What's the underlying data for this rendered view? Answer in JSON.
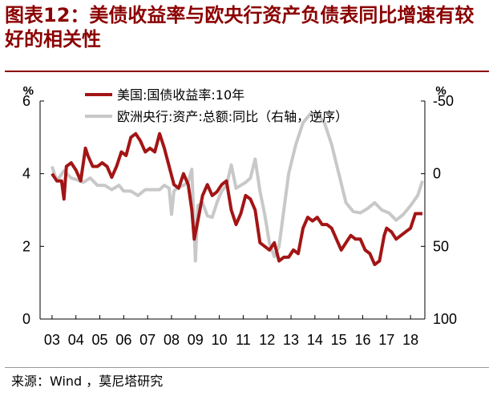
{
  "title": "图表12：美债收益率与欧央行资产负债表同比增速有较好的相关性",
  "source": "来源：Wind ，莫尼塔研究",
  "colors": {
    "series1": "#a31515",
    "series2": "#c8c8c8",
    "title": "#8b0000"
  },
  "chart_data": {
    "type": "line",
    "title": "图表12：美债收益率与欧央行资产负债表同比增速有较好的相关性",
    "x_ticks": [
      "03",
      "04",
      "05",
      "06",
      "07",
      "08",
      "09",
      "10",
      "11",
      "12",
      "13",
      "14",
      "15",
      "16",
      "17",
      "18"
    ],
    "x_range": [
      2002.5,
      2018.6
    ],
    "y_left": {
      "unit": "%",
      "range": [
        0,
        6
      ],
      "ticks": [
        0,
        2,
        4,
        6
      ]
    },
    "y_right": {
      "unit": "%",
      "range": [
        -50,
        100
      ],
      "inverted": true,
      "ticks": [
        -50,
        0,
        50,
        100
      ]
    },
    "legend_position": "top-left",
    "grid": false,
    "series": [
      {
        "name": "美国:国债收益率:10年",
        "axis": "left",
        "color": "#a31515",
        "points": [
          [
            2003.0,
            4.0
          ],
          [
            2003.2,
            3.8
          ],
          [
            2003.4,
            3.8
          ],
          [
            2003.5,
            3.3
          ],
          [
            2003.6,
            4.2
          ],
          [
            2003.8,
            4.3
          ],
          [
            2004.0,
            4.1
          ],
          [
            2004.2,
            3.8
          ],
          [
            2004.4,
            4.7
          ],
          [
            2004.5,
            4.5
          ],
          [
            2004.7,
            4.2
          ],
          [
            2004.9,
            4.2
          ],
          [
            2005.1,
            4.3
          ],
          [
            2005.3,
            4.2
          ],
          [
            2005.5,
            3.9
          ],
          [
            2005.7,
            4.2
          ],
          [
            2005.9,
            4.6
          ],
          [
            2006.1,
            4.5
          ],
          [
            2006.3,
            5.0
          ],
          [
            2006.5,
            5.1
          ],
          [
            2006.7,
            4.9
          ],
          [
            2006.9,
            4.6
          ],
          [
            2007.1,
            4.7
          ],
          [
            2007.3,
            4.6
          ],
          [
            2007.5,
            5.1
          ],
          [
            2007.7,
            4.7
          ],
          [
            2007.9,
            4.2
          ],
          [
            2008.1,
            3.7
          ],
          [
            2008.3,
            3.6
          ],
          [
            2008.5,
            4.0
          ],
          [
            2008.7,
            3.7
          ],
          [
            2008.85,
            3.0
          ],
          [
            2008.95,
            2.2
          ],
          [
            2009.1,
            2.7
          ],
          [
            2009.3,
            3.4
          ],
          [
            2009.5,
            3.7
          ],
          [
            2009.7,
            3.4
          ],
          [
            2009.9,
            3.5
          ],
          [
            2010.1,
            3.7
          ],
          [
            2010.3,
            3.8
          ],
          [
            2010.5,
            3.0
          ],
          [
            2010.7,
            2.6
          ],
          [
            2010.9,
            2.9
          ],
          [
            2011.1,
            3.4
          ],
          [
            2011.3,
            3.3
          ],
          [
            2011.5,
            3.0
          ],
          [
            2011.7,
            2.1
          ],
          [
            2011.9,
            2.0
          ],
          [
            2012.1,
            1.9
          ],
          [
            2012.3,
            2.1
          ],
          [
            2012.5,
            1.6
          ],
          [
            2012.7,
            1.7
          ],
          [
            2012.9,
            1.7
          ],
          [
            2013.1,
            1.9
          ],
          [
            2013.3,
            1.8
          ],
          [
            2013.5,
            2.5
          ],
          [
            2013.7,
            2.8
          ],
          [
            2013.9,
            2.7
          ],
          [
            2014.1,
            2.8
          ],
          [
            2014.3,
            2.6
          ],
          [
            2014.5,
            2.6
          ],
          [
            2014.7,
            2.5
          ],
          [
            2014.9,
            2.2
          ],
          [
            2015.1,
            1.9
          ],
          [
            2015.3,
            2.1
          ],
          [
            2015.5,
            2.3
          ],
          [
            2015.7,
            2.2
          ],
          [
            2015.9,
            2.2
          ],
          [
            2016.1,
            1.9
          ],
          [
            2016.3,
            1.8
          ],
          [
            2016.5,
            1.5
          ],
          [
            2016.7,
            1.6
          ],
          [
            2016.9,
            2.3
          ],
          [
            2017.0,
            2.5
          ],
          [
            2017.2,
            2.4
          ],
          [
            2017.4,
            2.2
          ],
          [
            2017.6,
            2.3
          ],
          [
            2017.8,
            2.4
          ],
          [
            2018.0,
            2.5
          ],
          [
            2018.2,
            2.9
          ],
          [
            2018.5,
            2.9
          ]
        ]
      },
      {
        "name": "欧洲央行:资产:总额:同比（右轴，逆序）",
        "axis": "right",
        "color": "#c8c8c8",
        "points": [
          [
            2003.0,
            -5
          ],
          [
            2003.2,
            5
          ],
          [
            2003.5,
            -2
          ],
          [
            2003.8,
            3
          ],
          [
            2004.0,
            4
          ],
          [
            2004.3,
            6
          ],
          [
            2004.6,
            3
          ],
          [
            2004.9,
            8
          ],
          [
            2005.2,
            8
          ],
          [
            2005.5,
            11
          ],
          [
            2005.8,
            8
          ],
          [
            2006.0,
            12
          ],
          [
            2006.3,
            12
          ],
          [
            2006.6,
            15
          ],
          [
            2006.9,
            11
          ],
          [
            2007.2,
            11
          ],
          [
            2007.5,
            11
          ],
          [
            2007.7,
            8
          ],
          [
            2007.9,
            10
          ],
          [
            2008.0,
            28
          ],
          [
            2008.1,
            12
          ],
          [
            2008.3,
            9
          ],
          [
            2008.5,
            8
          ],
          [
            2008.7,
            6
          ],
          [
            2008.85,
            -3
          ],
          [
            2009.0,
            60
          ],
          [
            2009.1,
            22
          ],
          [
            2009.3,
            20
          ],
          [
            2009.5,
            29
          ],
          [
            2009.7,
            30
          ],
          [
            2009.9,
            20
          ],
          [
            2010.1,
            12
          ],
          [
            2010.3,
            8
          ],
          [
            2010.5,
            -6
          ],
          [
            2010.7,
            10
          ],
          [
            2010.9,
            8
          ],
          [
            2011.1,
            6
          ],
          [
            2011.3,
            3
          ],
          [
            2011.5,
            -10
          ],
          [
            2011.7,
            12
          ],
          [
            2011.9,
            28
          ],
          [
            2012.1,
            48
          ],
          [
            2012.3,
            57
          ],
          [
            2012.5,
            50
          ],
          [
            2012.7,
            25
          ],
          [
            2012.9,
            0
          ],
          [
            2013.2,
            -20
          ],
          [
            2013.5,
            -35
          ],
          [
            2013.8,
            -41
          ],
          [
            2014.1,
            -41
          ],
          [
            2014.4,
            -35
          ],
          [
            2014.7,
            -20
          ],
          [
            2015.0,
            0
          ],
          [
            2015.3,
            20
          ],
          [
            2015.6,
            26
          ],
          [
            2015.9,
            27
          ],
          [
            2016.2,
            24
          ],
          [
            2016.5,
            20
          ],
          [
            2016.8,
            25
          ],
          [
            2017.1,
            27
          ],
          [
            2017.4,
            32
          ],
          [
            2017.7,
            28
          ],
          [
            2018.0,
            22
          ],
          [
            2018.3,
            15
          ],
          [
            2018.5,
            5
          ]
        ]
      }
    ]
  }
}
